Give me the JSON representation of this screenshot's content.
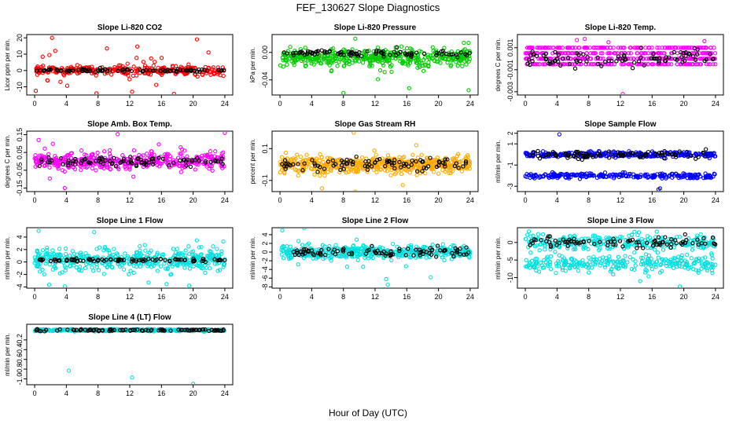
{
  "figure": {
    "title": "FEF_130627  Slope Diagnostics",
    "xlabel": "Hour of Day (UTC)"
  },
  "chart_data": [
    {
      "type": "scatter",
      "id": "co2",
      "title": "Slope Li-820 CO2",
      "ylabel": "Licor ppm per min.",
      "xlim": [
        -1,
        25
      ],
      "ylim": [
        -15,
        22
      ],
      "yticks": [
        "-10",
        "0",
        "10",
        "20"
      ],
      "ytick_values": [
        -10,
        0,
        10,
        20
      ],
      "xticks": [
        "0",
        "4",
        "8",
        "12",
        "16",
        "20",
        "24"
      ],
      "color": "#ff0000",
      "base": 0,
      "spread": 2.5,
      "outlier_rate": 0.12,
      "outlier_spread": 9,
      "n": 320,
      "extra": [
        [
          2.2,
          20
        ],
        [
          2.6,
          12
        ],
        [
          7.8,
          -14
        ],
        [
          12.3,
          -13
        ],
        [
          1.6,
          -6
        ]
      ],
      "black_spread": 0.8
    },
    {
      "type": "scatter",
      "id": "pressure",
      "title": "Slope Li-820 Pressure",
      "ylabel": "kPa per min.",
      "xlim": [
        -1,
        25
      ],
      "ylim": [
        -0.062,
        0.026
      ],
      "yticks": [
        "-0.04",
        "0.00"
      ],
      "ytick_values": [
        -0.04,
        0.0
      ],
      "xticks": [
        "0",
        "4",
        "8",
        "12",
        "16",
        "20",
        "24"
      ],
      "color": "#00cc00",
      "base": -0.008,
      "spread": 0.012,
      "outlier_rate": 0.02,
      "outlier_spread": 0.02,
      "n": 480,
      "extra": [
        [
          8,
          -0.059
        ],
        [
          16.3,
          -0.052
        ],
        [
          23.8,
          -0.055
        ],
        [
          9.5,
          0.02
        ],
        [
          23.2,
          0.014
        ],
        [
          23.8,
          0.014
        ]
      ],
      "black_spread": 0.004,
      "black_base": -0.001
    },
    {
      "type": "scatter",
      "id": "temp",
      "title": "Slope Li-820 Temp.",
      "ylabel": "degrees C per min.",
      "xlim": [
        -1,
        25
      ],
      "ylim": [
        -0.0033,
        0.0022
      ],
      "yticks": [
        "-0.003",
        "-0.001",
        "0.001"
      ],
      "ytick_values": [
        -0.003,
        -0.001,
        0.001
      ],
      "xticks": [
        "0",
        "4",
        "8",
        "12",
        "16",
        "20",
        "24"
      ],
      "color": "#ff00ff",
      "levels": [
        0.001,
        0.0005,
        0.0,
        -0.0005
      ],
      "n": 520,
      "extra": [
        [
          12.3,
          -0.0032
        ],
        [
          6.5,
          0.0017
        ],
        [
          7.5,
          0.0018
        ],
        [
          22.6,
          0.0016
        ],
        [
          10.5,
          0.0015
        ]
      ],
      "black_spread": 0.0006
    },
    {
      "type": "scatter",
      "id": "ambtemp",
      "title": "Slope Amb. Box Temp.",
      "ylabel": "degrees C per min.",
      "xlim": [
        -1,
        25
      ],
      "ylim": [
        -0.17,
        0.17
      ],
      "yticks": [
        "-0.15",
        "-0.05",
        "0.05",
        "0.15"
      ],
      "ytick_values": [
        -0.15,
        -0.05,
        0.05,
        0.15
      ],
      "xticks": [
        "0",
        "4",
        "8",
        "12",
        "16",
        "20",
        "24"
      ],
      "color": "#ff00ff",
      "base": 0.0,
      "spread": 0.045,
      "outlier_rate": 0.05,
      "outlier_spread": 0.08,
      "n": 440,
      "extra": [
        [
          3.8,
          -0.15
        ],
        [
          24,
          0.16
        ],
        [
          0.5,
          0.12
        ]
      ],
      "black_spread": 0.02
    },
    {
      "type": "scatter",
      "id": "rh",
      "title": "Slope Gas Stream RH",
      "ylabel": "percent per min.",
      "xlim": [
        -1,
        25
      ],
      "ylim": [
        -0.17,
        0.21
      ],
      "yticks": [
        "-0.1",
        "0.1"
      ],
      "ytick_values": [
        -0.1,
        0.1
      ],
      "xticks": [
        "0",
        "4",
        "8",
        "12",
        "16",
        "20",
        "24"
      ],
      "color": "#ffaa00",
      "base": 0.0,
      "spread": 0.05,
      "outlier_rate": 0.04,
      "outlier_spread": 0.07,
      "n": 540,
      "extra": [
        [
          9.3,
          0.2
        ],
        [
          9.5,
          -0.17
        ],
        [
          5.3,
          -0.15
        ]
      ],
      "black_spread": 0.035
    },
    {
      "type": "scatter",
      "id": "sampleflow",
      "title": "Slope Sample Flow",
      "ylabel": "ml/min per min.",
      "xlim": [
        -1,
        25
      ],
      "ylim": [
        -3.5,
        2.2
      ],
      "yticks": [
        "-3",
        "-1",
        "1",
        "2"
      ],
      "ytick_values": [
        -3,
        -1,
        1,
        2
      ],
      "xticks": [
        "0",
        "4",
        "8",
        "12",
        "16",
        "20",
        "24"
      ],
      "color": "#0000ff",
      "bands": [
        0.0,
        -2.0
      ],
      "spread": 0.25,
      "n": 520,
      "extra": [
        [
          4.3,
          1.9
        ],
        [
          16.8,
          -3.3
        ],
        [
          17,
          -3.2
        ]
      ],
      "black_spread": 0.3
    },
    {
      "type": "scatter",
      "id": "line1",
      "title": "Slope Line 1 Flow",
      "ylabel": "ml/min per min.",
      "xlim": [
        -1,
        25
      ],
      "ylim": [
        -4.2,
        5.5
      ],
      "yticks": [
        "-4",
        "-2",
        "0",
        "2",
        "4"
      ],
      "ytick_values": [
        -4,
        -2,
        0,
        2,
        4
      ],
      "xticks": [
        "0",
        "4",
        "8",
        "12",
        "16",
        "20",
        "24"
      ],
      "color": "#00e0e0",
      "base": 0.3,
      "spread": 1.6,
      "outlier_rate": 0.05,
      "outlier_spread": 2.5,
      "n": 460,
      "extra": [
        [
          3.8,
          -3.9
        ],
        [
          19.5,
          -3.8
        ],
        [
          0.5,
          5
        ],
        [
          7.5,
          4.8
        ]
      ],
      "black_spread": 0.2
    },
    {
      "type": "scatter",
      "id": "line2",
      "title": "Slope Line 2 Flow",
      "ylabel": "ml/min per min.",
      "xlim": [
        -1,
        25
      ],
      "ylim": [
        -8.3,
        5.6
      ],
      "yticks": [
        "-8",
        "-6",
        "-4",
        "-2",
        "0",
        "2",
        "4"
      ],
      "ytick_values": [
        -8,
        -6,
        -4,
        -2,
        0,
        2,
        4
      ],
      "xticks": [
        "0",
        "4",
        "8",
        "12",
        "16",
        "20",
        "24"
      ],
      "color": "#00e0e0",
      "base": 0.0,
      "spread": 1.4,
      "outlier_rate": 0.04,
      "outlier_spread": 2.5,
      "n": 460,
      "extra": [
        [
          13.6,
          -7.5
        ],
        [
          13.4,
          -6.2
        ],
        [
          0.3,
          5
        ]
      ],
      "black_spread": 1.0
    },
    {
      "type": "scatter",
      "id": "line3",
      "title": "Slope Line 3 Flow",
      "ylabel": "ml/min per min.",
      "xlim": [
        -1,
        25
      ],
      "ylim": [
        -13,
        4.2
      ],
      "yticks": [
        "-10",
        "-5",
        "0"
      ],
      "ytick_values": [
        -10,
        -5,
        0
      ],
      "xticks": [
        "0",
        "4",
        "8",
        "12",
        "16",
        "20",
        "24"
      ],
      "color": "#00e0e0",
      "bands": [
        0.0,
        -6.0
      ],
      "spread": 2.2,
      "n": 560,
      "extra": [
        [
          19.5,
          -12.5
        ],
        [
          14.5,
          -11
        ]
      ],
      "black_spread": 1.0
    },
    {
      "type": "scatter",
      "id": "line4",
      "title": "Slope Line 4 (LT) Flow",
      "ylabel": "ml/min per min.",
      "xlim": [
        -1,
        25
      ],
      "ylim": [
        -1.12,
        0.12
      ],
      "yticks": [
        "-1.0",
        "-0.8",
        "-0.6",
        "-0.4",
        "-0.2"
      ],
      "ytick_values": [
        -1.0,
        -0.8,
        -0.6,
        -0.4,
        -0.2
      ],
      "xticks": [
        "0",
        "4",
        "8",
        "12",
        "16",
        "20",
        "24"
      ],
      "color": "#00e0e0",
      "base": 0.0,
      "spread": 0.02,
      "outlier_rate": 0.0,
      "outlier_spread": 0.0,
      "n": 420,
      "extra": [
        [
          4.3,
          -0.83
        ],
        [
          12.3,
          -0.97
        ],
        [
          20,
          -1.1
        ]
      ],
      "black_spread": 0.015
    }
  ]
}
